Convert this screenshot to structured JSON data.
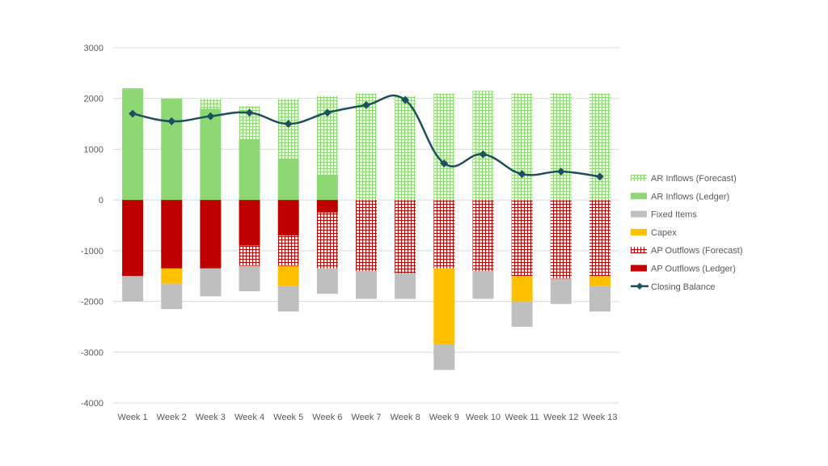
{
  "chart_data": {
    "type": "bar",
    "stacked": true,
    "grid": true,
    "legend_position": "right",
    "ylim": [
      -4000,
      3000
    ],
    "yticks": [
      3000,
      2000,
      1000,
      0,
      -1000,
      -2000,
      -3000,
      -4000
    ],
    "ytick_labels": [
      "3000",
      "2000",
      "1000",
      "0",
      "-1000",
      "-2000",
      "-3000",
      "-4000"
    ],
    "categories": [
      "Week 1",
      "Week 2",
      "Week 3",
      "Week 4",
      "Week 5",
      "Week 6",
      "Week 7",
      "Week 8",
      "Week 9",
      "Week 10",
      "Week 11",
      "Week 12",
      "Week 13"
    ],
    "series": [
      {
        "name": "AR Inflows (Ledger)",
        "kind": "positive",
        "pattern": "solid",
        "color": "#8DD872",
        "values": [
          2200,
          2000,
          1800,
          1200,
          800,
          500,
          0,
          0,
          0,
          0,
          0,
          0,
          0
        ]
      },
      {
        "name": "AR Inflows (Forecast)",
        "kind": "positive",
        "pattern": "grid",
        "color": "#8DD872",
        "values": [
          0,
          0,
          200,
          650,
          1200,
          1550,
          2100,
          2050,
          2100,
          2150,
          2100,
          2100,
          2100
        ]
      },
      {
        "name": "AP Outflows (Ledger)",
        "kind": "negative",
        "pattern": "solid",
        "color": "#C00000",
        "values": [
          -1500,
          -1350,
          -1350,
          -900,
          -700,
          -250,
          0,
          0,
          0,
          0,
          0,
          0,
          0
        ]
      },
      {
        "name": "AP Outflows (Forecast)",
        "kind": "negative",
        "pattern": "grid",
        "color": "#C00000",
        "values": [
          0,
          0,
          0,
          -400,
          -600,
          -1100,
          -1400,
          -1450,
          -1350,
          -1400,
          -1500,
          -1550,
          -1500
        ]
      },
      {
        "name": "Capex",
        "kind": "negative",
        "pattern": "solid",
        "color": "#FFC000",
        "values": [
          0,
          -300,
          0,
          0,
          -400,
          0,
          0,
          0,
          -1500,
          0,
          -500,
          0,
          -200
        ]
      },
      {
        "name": "Fixed Items",
        "kind": "negative",
        "pattern": "solid",
        "color": "#BFBFBF",
        "values": [
          -500,
          -500,
          -550,
          -500,
          -500,
          -500,
          -550,
          -500,
          -500,
          -550,
          -500,
          -500,
          -500
        ]
      },
      {
        "name": "Closing Balance",
        "kind": "line",
        "color": "#1F4E5F",
        "values": [
          1700,
          1550,
          1650,
          1720,
          1500,
          1720,
          1870,
          1970,
          720,
          900,
          510,
          560,
          460
        ]
      }
    ],
    "legend": [
      {
        "name": "AR Inflows (Forecast)",
        "swatch": "grid",
        "color": "#8DD872"
      },
      {
        "name": "AR Inflows (Ledger)",
        "swatch": "solid",
        "color": "#8DD872"
      },
      {
        "name": "Fixed Items",
        "swatch": "solid",
        "color": "#BFBFBF"
      },
      {
        "name": "Capex",
        "swatch": "solid",
        "color": "#FFC000"
      },
      {
        "name": "AP Outflows (Forecast)",
        "swatch": "grid",
        "color": "#C00000"
      },
      {
        "name": "AP Outflows (Ledger)",
        "swatch": "solid",
        "color": "#C00000"
      },
      {
        "name": "Closing Balance",
        "swatch": "line",
        "color": "#1F4E5F"
      }
    ],
    "colors": {
      "grid_line": "#D9D9D9",
      "text": "#595959",
      "pattern_background": "#FFFFFF"
    }
  }
}
